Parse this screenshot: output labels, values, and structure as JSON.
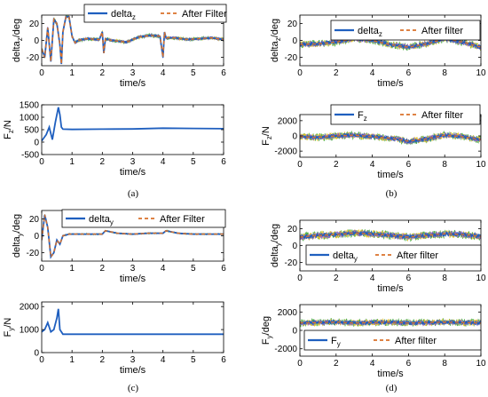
{
  "figure": {
    "panels": [
      {
        "id": "a",
        "label": "(a)"
      },
      {
        "id": "b",
        "label": "(b)"
      },
      {
        "id": "c",
        "label": "(c)"
      },
      {
        "id": "d",
        "label": "(d)"
      }
    ]
  },
  "colors": {
    "raw": "#1f5fbf",
    "filter": "#d9702a",
    "noise_green": "#4daf4a",
    "noise_yellow": "#e6c229",
    "noise_purple": "#9467bd",
    "axis": "#000000"
  },
  "chart_data": [
    {
      "id": "a-top",
      "type": "line",
      "xlabel": "time/s",
      "ylabel_main": "delta",
      "ylabel_sub": "z",
      "ylabel_tail": "/deg",
      "xlim": [
        0,
        6
      ],
      "ylim": [
        -30,
        30
      ],
      "xticks": [
        0,
        1,
        2,
        3,
        4,
        5,
        6
      ],
      "yticks": [
        -20,
        0,
        20
      ],
      "legend": {
        "raw_main": "delta",
        "raw_sub": "z",
        "filter": "After Filter",
        "position": "top"
      },
      "series": [
        {
          "name": "delta_z",
          "x": [
            0,
            0.1,
            0.2,
            0.3,
            0.4,
            0.5,
            0.6,
            0.65,
            0.7,
            0.8,
            0.9,
            1.0,
            1.1,
            1.2,
            1.5,
            1.9,
            2.0,
            2.05,
            2.1,
            2.3,
            2.8,
            3.2,
            3.6,
            3.9,
            4.0,
            4.05,
            4.1,
            4.4,
            4.8,
            5.2,
            5.6,
            6.0
          ],
          "y": [
            -10,
            -20,
            15,
            -25,
            25,
            20,
            -5,
            -28,
            10,
            28,
            28,
            5,
            -3,
            0,
            2,
            1,
            10,
            -15,
            2,
            0,
            -2,
            4,
            6,
            5,
            -20,
            10,
            3,
            3,
            1,
            2,
            3,
            1
          ]
        },
        {
          "name": "After Filter",
          "x": [
            0,
            0.1,
            0.2,
            0.3,
            0.4,
            0.5,
            0.6,
            0.65,
            0.7,
            0.8,
            0.9,
            1.0,
            1.1,
            1.2,
            1.5,
            1.9,
            2.0,
            2.05,
            2.1,
            2.3,
            2.8,
            3.2,
            3.6,
            3.9,
            4.0,
            4.05,
            4.1,
            4.4,
            4.8,
            5.2,
            5.6,
            6.0
          ],
          "y": [
            -10,
            -20,
            15,
            -25,
            25,
            20,
            -5,
            -28,
            10,
            28,
            28,
            5,
            -3,
            0,
            2,
            1,
            10,
            -15,
            2,
            0,
            -2,
            4,
            6,
            5,
            -20,
            10,
            3,
            3,
            1,
            2,
            3,
            1
          ]
        }
      ]
    },
    {
      "id": "a-bottom",
      "type": "line",
      "xlabel": "time/s",
      "ylabel_main": "F",
      "ylabel_sub": "z",
      "ylabel_tail": "/N",
      "xlim": [
        0,
        6
      ],
      "ylim": [
        -500,
        1500
      ],
      "xticks": [
        0,
        1,
        2,
        3,
        4,
        5,
        6
      ],
      "yticks": [
        -500,
        0,
        500,
        1000,
        1500
      ],
      "series": [
        {
          "name": "F_z",
          "x": [
            0,
            0.15,
            0.25,
            0.35,
            0.45,
            0.55,
            0.6,
            0.65,
            0.7,
            1.0,
            2.0,
            3.0,
            4.0,
            5.0,
            6.0
          ],
          "y": [
            50,
            300,
            600,
            100,
            800,
            1400,
            1100,
            600,
            520,
            510,
            520,
            530,
            560,
            550,
            540
          ]
        }
      ]
    },
    {
      "id": "b-top",
      "type": "line",
      "xlabel": "time/s",
      "ylabel_main": "delta",
      "ylabel_sub": "z",
      "ylabel_tail": "/deg",
      "xlim": [
        0,
        10
      ],
      "ylim": [
        -30,
        30
      ],
      "xticks": [
        0,
        2,
        4,
        6,
        8,
        10
      ],
      "yticks": [
        -20,
        0,
        20
      ],
      "legend": {
        "raw_main": "delta",
        "raw_sub": "z",
        "filter": "After filter",
        "position": "top-right"
      },
      "series": [
        {
          "name": "delta_z",
          "x": [
            0,
            1,
            2,
            3,
            4,
            5,
            6,
            7,
            8,
            9,
            10
          ],
          "y": [
            -5,
            -4,
            -2,
            2,
            0,
            -5,
            -8,
            -4,
            2,
            -2,
            -8
          ]
        },
        {
          "name": "After filter",
          "x": [
            0,
            1,
            2,
            3,
            4,
            5,
            6,
            7,
            8,
            9,
            10
          ],
          "y": [
            -5,
            -4,
            -2,
            2,
            0,
            -5,
            -8,
            -4,
            2,
            -2,
            -8
          ]
        }
      ]
    },
    {
      "id": "b-bottom",
      "type": "line",
      "xlabel": "time/s",
      "ylabel_main": "F",
      "ylabel_sub": "z",
      "ylabel_tail": "/N",
      "xlim": [
        0,
        10
      ],
      "ylim": [
        -2800,
        2800
      ],
      "xticks": [
        0,
        2,
        4,
        6,
        8,
        10
      ],
      "yticks": [
        -2000,
        0,
        2000
      ],
      "legend": {
        "raw_main": "F",
        "raw_sub": "z",
        "filter": "After filter",
        "position": "top"
      },
      "series": [
        {
          "name": "F_z",
          "x": [
            0,
            1,
            2,
            3,
            4,
            5,
            6,
            7,
            8,
            9,
            10
          ],
          "y": [
            -100,
            -200,
            0,
            100,
            -100,
            -300,
            -700,
            -400,
            100,
            -100,
            -500
          ]
        },
        {
          "name": "After filter",
          "x": [
            0,
            1,
            2,
            3,
            4,
            5,
            6,
            7,
            8,
            9,
            10
          ],
          "y": [
            -100,
            -200,
            0,
            100,
            -100,
            -300,
            -700,
            -400,
            100,
            -100,
            -500
          ]
        }
      ]
    },
    {
      "id": "c-top",
      "type": "line",
      "xlabel": "time/s",
      "ylabel_main": "delta",
      "ylabel_sub": "y",
      "ylabel_tail": "/deg",
      "xlim": [
        0,
        6
      ],
      "ylim": [
        -30,
        30
      ],
      "xticks": [
        0,
        1,
        2,
        3,
        4,
        5,
        6
      ],
      "yticks": [
        -20,
        0,
        20
      ],
      "legend": {
        "raw_main": "delta",
        "raw_sub": "y",
        "filter": "After Filter",
        "position": "top"
      },
      "series": [
        {
          "name": "delta_y",
          "x": [
            0,
            0.1,
            0.2,
            0.3,
            0.4,
            0.5,
            0.6,
            0.7,
            0.9,
            1.2,
            1.6,
            2.0,
            2.1,
            2.5,
            3.0,
            3.5,
            4.0,
            4.1,
            4.5,
            5.0,
            6.0
          ],
          "y": [
            -5,
            25,
            10,
            -25,
            -20,
            -5,
            -10,
            0,
            2,
            2,
            2,
            2,
            6,
            3,
            2,
            3,
            3,
            6,
            3,
            2,
            2
          ]
        },
        {
          "name": "After Filter",
          "x": [
            0,
            0.1,
            0.2,
            0.3,
            0.4,
            0.5,
            0.6,
            0.7,
            0.9,
            1.2,
            1.6,
            2.0,
            2.1,
            2.5,
            3.0,
            3.5,
            4.0,
            4.1,
            4.5,
            5.0,
            6.0
          ],
          "y": [
            -5,
            25,
            10,
            -25,
            -20,
            -5,
            -10,
            0,
            2,
            2,
            2,
            2,
            6,
            3,
            2,
            3,
            3,
            6,
            3,
            2,
            2
          ]
        }
      ]
    },
    {
      "id": "c-bottom",
      "type": "line",
      "xlabel": "time/s",
      "ylabel_main": "F",
      "ylabel_sub": "y",
      "ylabel_tail": "/N",
      "xlim": [
        0,
        6
      ],
      "ylim": [
        0,
        2200
      ],
      "xticks": [
        0,
        1,
        2,
        3,
        4,
        5,
        6
      ],
      "yticks": [
        0,
        1000,
        2000
      ],
      "series": [
        {
          "name": "F_y",
          "x": [
            0,
            0.1,
            0.2,
            0.3,
            0.4,
            0.5,
            0.55,
            0.6,
            0.7,
            1.0,
            2.0,
            3.0,
            4.0,
            5.0,
            6.0
          ],
          "y": [
            900,
            1000,
            1300,
            900,
            1000,
            1500,
            1900,
            1000,
            800,
            800,
            800,
            800,
            800,
            800,
            800
          ]
        }
      ]
    },
    {
      "id": "d-top",
      "type": "line",
      "xlabel": "time/s",
      "ylabel_main": "delta",
      "ylabel_sub": "y",
      "ylabel_tail": "/deg",
      "xlim": [
        0,
        10
      ],
      "ylim": [
        -30,
        30
      ],
      "xticks": [
        0,
        2,
        4,
        6,
        8,
        10
      ],
      "yticks": [
        -20,
        0,
        20
      ],
      "legend": {
        "raw_main": "delta",
        "raw_sub": "y",
        "filter": "After filter",
        "position": "bottom"
      },
      "series": [
        {
          "name": "delta_y",
          "x": [
            0,
            1,
            2,
            3,
            4,
            5,
            6,
            7,
            8,
            9,
            10
          ],
          "y": [
            10,
            12,
            13,
            15,
            14,
            12,
            10,
            12,
            14,
            13,
            11
          ]
        },
        {
          "name": "After filter",
          "x": [
            0,
            1,
            2,
            3,
            4,
            5,
            6,
            7,
            8,
            9,
            10
          ],
          "y": [
            10,
            12,
            13,
            15,
            14,
            12,
            10,
            12,
            14,
            13,
            11
          ]
        }
      ]
    },
    {
      "id": "d-bottom",
      "type": "line",
      "xlabel": "time/s",
      "ylabel_main": "F",
      "ylabel_sub": "y",
      "ylabel_tail": "/deg",
      "xlim": [
        0,
        10
      ],
      "ylim": [
        -2800,
        2800
      ],
      "xticks": [
        0,
        2,
        4,
        6,
        8,
        10
      ],
      "yticks": [
        -2000,
        0,
        2000
      ],
      "legend": {
        "raw_main": "F",
        "raw_sub": "y",
        "filter": "After filter",
        "position": "bottom"
      },
      "series": [
        {
          "name": "F_y",
          "x": [
            0,
            1,
            2,
            3,
            4,
            5,
            6,
            7,
            8,
            9,
            10
          ],
          "y": [
            800,
            850,
            900,
            800,
            850,
            900,
            800,
            850,
            900,
            850,
            800
          ]
        },
        {
          "name": "After filter",
          "x": [
            0,
            1,
            2,
            3,
            4,
            5,
            6,
            7,
            8,
            9,
            10
          ],
          "y": [
            800,
            850,
            900,
            800,
            850,
            900,
            800,
            850,
            900,
            850,
            800
          ]
        }
      ]
    }
  ]
}
